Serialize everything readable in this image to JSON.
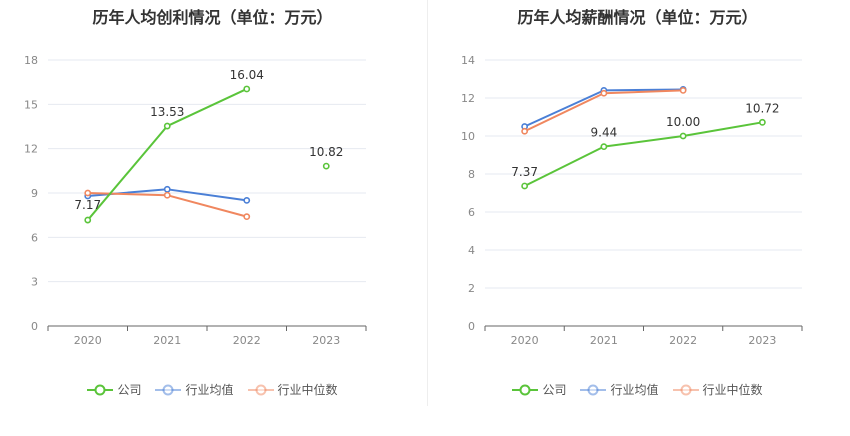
{
  "chart_data": [
    {
      "type": "line",
      "title": "历年人均创利情况（单位：万元）",
      "categories": [
        "2020",
        "2021",
        "2022",
        "2023"
      ],
      "ylim": [
        0,
        18
      ],
      "yticks": [
        0,
        3,
        6,
        9,
        12,
        15,
        18
      ],
      "grid": true,
      "legend": "bottom",
      "series": [
        {
          "name": "公司",
          "color": "#5ac43a",
          "values": [
            7.17,
            13.53,
            16.04,
            10.82
          ],
          "labels": [
            "7.17",
            "13.53",
            "16.04",
            "10.82"
          ],
          "connect": [
            true,
            true,
            false
          ]
        },
        {
          "name": "行业均值",
          "color": "#4a7fd6",
          "values": [
            8.8,
            9.25,
            8.5,
            null
          ],
          "labels": null,
          "connect": [
            true,
            true,
            false
          ]
        },
        {
          "name": "行业中位数",
          "color": "#f0875f",
          "values": [
            9.0,
            8.85,
            7.4,
            null
          ],
          "labels": null,
          "connect": [
            true,
            true,
            false
          ]
        }
      ]
    },
    {
      "type": "line",
      "title": "历年人均薪酬情况（单位：万元）",
      "categories": [
        "2020",
        "2021",
        "2022",
        "2023"
      ],
      "ylim": [
        0,
        14
      ],
      "yticks": [
        0,
        2,
        4,
        6,
        8,
        10,
        12,
        14
      ],
      "grid": true,
      "legend": "bottom",
      "series": [
        {
          "name": "公司",
          "color": "#5ac43a",
          "values": [
            7.37,
            9.44,
            10.0,
            10.72
          ],
          "labels": [
            "7.37",
            "9.44",
            "10.00",
            "10.72"
          ],
          "connect": [
            true,
            true,
            true
          ]
        },
        {
          "name": "行业均值",
          "color": "#4a7fd6",
          "values": [
            10.5,
            12.4,
            12.45,
            null
          ],
          "labels": null,
          "connect": [
            true,
            true,
            false
          ]
        },
        {
          "name": "行业中位数",
          "color": "#f0875f",
          "values": [
            10.25,
            12.25,
            12.4,
            null
          ],
          "labels": null,
          "connect": [
            true,
            true,
            false
          ]
        }
      ]
    }
  ],
  "legend": [
    {
      "name": "公司",
      "color": "#5ac43a"
    },
    {
      "name": "行业均值",
      "color": "#4a7fd6"
    },
    {
      "name": "行业中位数",
      "color": "#f0875f"
    }
  ]
}
